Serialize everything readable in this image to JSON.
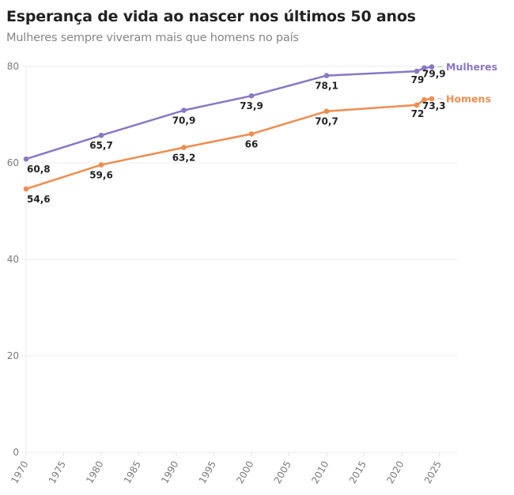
{
  "header": {
    "title": "Esperança de vida ao nascer nos últimos 50 anos",
    "subtitle": "Mulheres sempre viveram mais que homens no país"
  },
  "chart_data": {
    "type": "line",
    "title": "Esperança de vida ao nascer nos últimos 50 anos",
    "subtitle": "Mulheres sempre viveram mais que homens no país",
    "xlabel": "",
    "ylabel": "",
    "xlim": [
      1970,
      2027
    ],
    "ylim": [
      0,
      80
    ],
    "x_ticks": [
      "1970",
      "1975",
      "1980",
      "1985",
      "1990",
      "1995",
      "2000",
      "2005",
      "2010",
      "2015",
      "2020",
      "2025"
    ],
    "y_ticks": [
      "0",
      "20",
      "40",
      "60",
      "80"
    ],
    "grid": true,
    "legend": "inline-right",
    "series": [
      {
        "name": "Mulheres",
        "color": "#8a77c4",
        "x": [
          1970,
          1980,
          1991,
          2000,
          2010,
          2022,
          2023,
          2024
        ],
        "values": [
          60.8,
          65.7,
          70.9,
          73.9,
          78.1,
          79.0,
          79.7,
          79.9
        ],
        "labels": [
          "60,8",
          "65,7",
          "70,9",
          "73,9",
          "78,1",
          "79",
          "",
          "79,9"
        ]
      },
      {
        "name": "Homens",
        "color": "#f08c4e",
        "x": [
          1970,
          1980,
          1991,
          2000,
          2010,
          2022,
          2023,
          2024
        ],
        "values": [
          54.6,
          59.6,
          63.2,
          66.0,
          70.7,
          72.0,
          73.1,
          73.3
        ],
        "labels": [
          "54,6",
          "59,6",
          "63,2",
          "66",
          "70,7",
          "72",
          "",
          "73,3"
        ]
      }
    ]
  }
}
